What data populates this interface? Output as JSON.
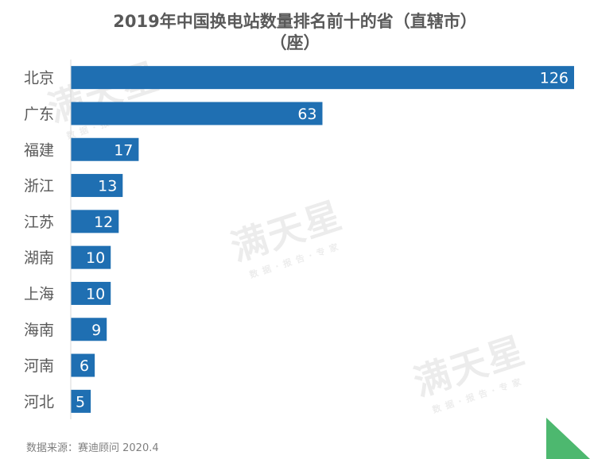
{
  "chart_data": {
    "type": "bar",
    "orientation": "horizontal",
    "title": "2019年中国换电站数量排名前十的省（直辖市）",
    "subtitle": "（座）",
    "categories": [
      "北京",
      "广东",
      "福建",
      "浙江",
      "江苏",
      "湖南",
      "上海",
      "海南",
      "河南",
      "河北"
    ],
    "values": [
      126,
      63,
      17,
      13,
      12,
      10,
      10,
      9,
      6,
      5
    ],
    "xlim": [
      0,
      126
    ],
    "grid": false,
    "data_labels": true,
    "bar_color": "#1f6fb2"
  },
  "source": "数据来源：赛迪顾问 2020.4",
  "watermark": {
    "brand": "满天星",
    "slogan": "数据·报告·专家"
  },
  "colors": {
    "corner": "#4db86f",
    "label_text": "#595959"
  }
}
